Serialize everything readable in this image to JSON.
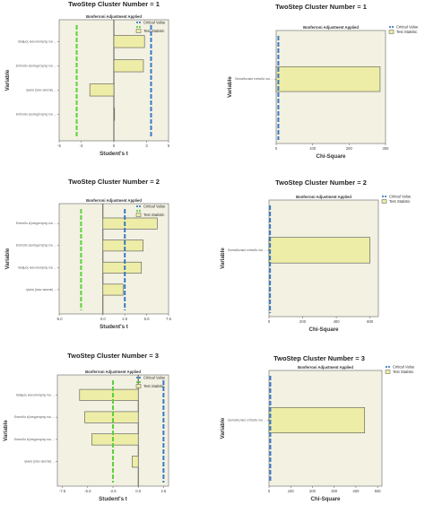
{
  "colors": {
    "plot_bg": "#f2f1e2",
    "bar_fill": "#eeeda7",
    "bar_stroke": "#555555",
    "critical_line": "#3b79c4",
    "critical_line_neg": "#5bd13a",
    "zero_line": "#333333"
  },
  "legend": {
    "critical_label": "Critical Value",
    "test_label": "Test Statistic"
  },
  "chart_data": [
    {
      "id": "c1",
      "type": "bar",
      "orientation": "horizontal",
      "title": "TwoStep Cluster Number = 1",
      "subtitle": "Bonferroni Adjustment Applied",
      "xlabel": "Student's t",
      "ylabel": "Variable",
      "categories": [
        "Βαθμός ικανοποίησης του ...",
        "Επιπεδο εξυπηρετησης του ...",
        "ηλικία (όταν ακτατεί) ...",
        "Επίπεδο εξυπηρέτησης του ..."
      ],
      "values": [
        2.8,
        2.7,
        -2.2,
        0.0
      ],
      "xlim": [
        -5,
        5
      ],
      "xticks": [
        "-5",
        "-3",
        "0",
        "3",
        "5"
      ],
      "critical_values": [
        -3.4,
        3.4
      ]
    },
    {
      "id": "c2",
      "type": "bar",
      "orientation": "horizontal",
      "title": "TwoStep Cluster Number = 1",
      "subtitle": "Bonferroni Adjustment Applied",
      "xlabel": "Chi-Square",
      "ylabel": "Variable",
      "categories": [
        "Εκπαιδευτικό επίπεδο του ..."
      ],
      "values": [
        285
      ],
      "xlim": [
        0,
        300
      ],
      "xticks": [
        "0",
        "100",
        "200",
        "300"
      ],
      "critical_values": [
        6
      ]
    },
    {
      "id": "c3",
      "type": "bar",
      "orientation": "horizontal",
      "title": "TwoStep Cluster Number = 2",
      "subtitle": "Bonferroni Adjustment Applied",
      "xlabel": "Student's t",
      "ylabel": "Variable",
      "categories": [
        "Επιπεδο εξυπηρετησης του ...",
        "Επιπεδο εξυπηρετησης του ...",
        "Βαθμός ικανοποίησης του ...",
        "ηλικία (όταν ακτατεί) ..."
      ],
      "values": [
        6.2,
        4.6,
        4.4,
        2.3
      ],
      "xlim": [
        -5,
        7.5
      ],
      "xticks": [
        "-5.0",
        "0.0",
        "2.5",
        "5.0",
        "7.5"
      ],
      "critical_values": [
        -2.5,
        2.5
      ]
    },
    {
      "id": "c4",
      "type": "bar",
      "orientation": "horizontal",
      "title": "TwoStep Cluster Number = 2",
      "subtitle": "Bonferroni Adjustment Applied",
      "xlabel": "Chi-Square",
      "ylabel": "Variable",
      "categories": [
        "Εκπαιδευτικό επίπεδο του ..."
      ],
      "values": [
        600
      ],
      "xlim": [
        0,
        650
      ],
      "xticks": [
        "0",
        "200",
        "400",
        "600"
      ],
      "critical_values": [
        6
      ]
    },
    {
      "id": "c5",
      "type": "bar",
      "orientation": "horizontal",
      "title": "TwoStep Cluster Number = 3",
      "subtitle": "Bonferroni Adjustment Applied",
      "xlabel": "Student's t",
      "ylabel": "Variable",
      "categories": [
        "Βαθμός ικανοποίησης του ...",
        "Επιπεδο εξυπηρετησης του ...",
        "Επιπεδο εξυπηρετησης του ...",
        "ηλικία (όταν ακτατεί) ..."
      ],
      "values": [
        -5.8,
        -5.3,
        -4.6,
        -0.6
      ],
      "xlim": [
        -8,
        3
      ],
      "xticks": [
        "-7.5",
        "-5.0",
        "-2.5",
        "0.0",
        "2.5"
      ],
      "critical_values": [
        -2.5,
        2.5
      ]
    },
    {
      "id": "c6",
      "type": "bar",
      "orientation": "horizontal",
      "title": "TwoStep Cluster Number = 3",
      "subtitle": "Bonferroni Adjustment Applied",
      "xlabel": "Chi-Square",
      "ylabel": "Variable",
      "categories": [
        "Εκπαιδευτικό επίπεδο του ..."
      ],
      "values": [
        440
      ],
      "xlim": [
        0,
        520
      ],
      "xticks": [
        "0",
        "100",
        "200",
        "300",
        "400",
        "500"
      ],
      "critical_values": [
        6
      ]
    }
  ]
}
